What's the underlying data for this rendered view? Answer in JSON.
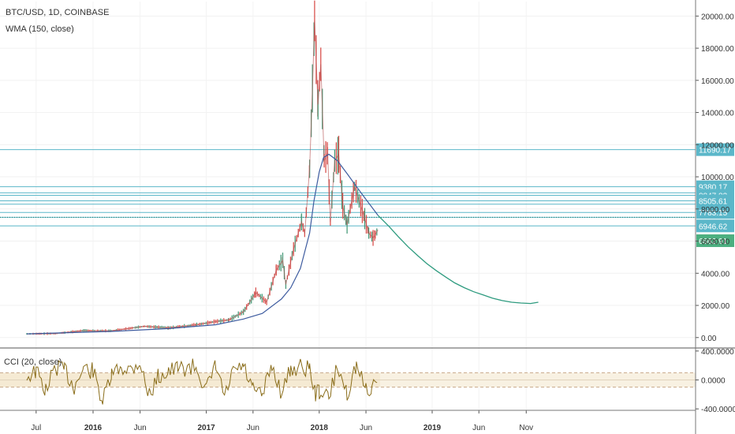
{
  "header": {
    "symbol": "BTC/USD, 1D, COINBASE",
    "indicator": "WMA (150, close)",
    "cci_label": "CCI (20, close)"
  },
  "chart_data": [
    {
      "type": "line",
      "yaxis": {
        "ticks": [
          "20000.00",
          "18000.00",
          "16000.00",
          "14000.00",
          "12000.00",
          "10000.00",
          "8000.00",
          "6000.00",
          "4000.00",
          "2000.00",
          "0.00"
        ],
        "ylim": [
          -600,
          20900
        ]
      },
      "xaxis": {
        "ticks": [
          "Jul",
          "2016",
          "Jun",
          "2017",
          "Jun",
          "2018",
          "Jun",
          "2019",
          "Jun",
          "Nov"
        ],
        "bold_ticks": [
          "2016",
          "2017",
          "2018",
          "2019"
        ]
      },
      "horizontal_levels": [
        {
          "value": 11690.17,
          "label": "11690.17",
          "boxed": true
        },
        {
          "value": 9380.17,
          "label": "9380.17",
          "boxed": true
        },
        {
          "value": 8847.83,
          "label": "8847.83",
          "boxed": true
        },
        {
          "value": 8505.61,
          "label": "8505.61",
          "boxed": true
        },
        {
          "value": 7783.15,
          "label": "7783.15",
          "boxed": true
        },
        {
          "value": 6946.62,
          "label": "6946.62",
          "boxed": true
        },
        {
          "value": 9000,
          "label": "",
          "boxed": false
        },
        {
          "value": 8300,
          "label": "",
          "boxed": false
        },
        {
          "value": 7480,
          "label": "",
          "boxed": false
        }
      ],
      "last_price": {
        "value": 6662.91,
        "label": "6662.91",
        "color": "#4caf80"
      },
      "price_line_dotted": 7480,
      "series": [
        {
          "id": "price",
          "x": [
            "2015-06-01",
            "2015-09-01",
            "2015-12-01",
            "2016-03-01",
            "2016-06-15",
            "2016-09-01",
            "2016-12-01",
            "2017-02-01",
            "2017-03-15",
            "2017-05-01",
            "2017-06-10",
            "2017-07-15",
            "2017-08-15",
            "2017-09-05",
            "2017-09-15",
            "2017-10-10",
            "2017-11-05",
            "2017-11-15",
            "2017-12-01",
            "2017-12-10",
            "2017-12-17",
            "2017-12-28",
            "2018-01-06",
            "2018-01-17",
            "2018-01-28",
            "2018-02-06",
            "2018-02-20",
            "2018-03-05",
            "2018-03-18",
            "2018-04-01",
            "2018-04-25",
            "2018-05-10",
            "2018-05-28",
            "2018-06-10",
            "2018-06-24",
            "2018-07-01",
            "2018-07-10"
          ],
          "y": [
            230,
            250,
            430,
            420,
            700,
            600,
            800,
            1000,
            1100,
            1600,
            2800,
            2200,
            4200,
            4800,
            3300,
            5500,
            7200,
            6500,
            10500,
            15500,
            19700,
            14500,
            17000,
            11000,
            11500,
            7200,
            11000,
            11400,
            8200,
            7000,
            9400,
            8500,
            7400,
            6500,
            6200,
            6400,
            6700
          ]
        },
        {
          "id": "wma_150",
          "x": [
            "2015-06-01",
            "2016-03-01",
            "2016-09-01",
            "2017-02-01",
            "2017-05-01",
            "2017-07-01",
            "2017-09-01",
            "2017-10-01",
            "2017-11-01",
            "2017-12-01",
            "2017-12-15",
            "2018-01-01",
            "2018-01-15",
            "2018-02-01",
            "2018-03-01",
            "2018-04-01",
            "2018-05-01",
            "2018-06-01",
            "2018-07-10"
          ],
          "y": [
            230,
            380,
            560,
            800,
            1150,
            1500,
            2400,
            3100,
            4300,
            6500,
            8500,
            10300,
            11200,
            11400,
            11000,
            10200,
            9400,
            8600,
            7600
          ]
        },
        {
          "id": "projection",
          "x": [
            "2018-07-10",
            "2018-08-15",
            "2018-09-15",
            "2018-10-15",
            "2018-11-15",
            "2018-12-15",
            "2019-01-15",
            "2019-02-15",
            "2019-03-15",
            "2019-04-15",
            "2019-05-15",
            "2019-06-15",
            "2019-07-15",
            "2019-08-15",
            "2019-09-15",
            "2019-10-15",
            "2019-11-15",
            "2019-12-10"
          ],
          "y": [
            7600,
            6900,
            6250,
            5650,
            5100,
            4600,
            4150,
            3750,
            3400,
            3100,
            2850,
            2650,
            2450,
            2300,
            2200,
            2150,
            2120,
            2200
          ]
        }
      ]
    },
    {
      "type": "line",
      "title": "CCI (20, close)",
      "yaxis": {
        "ticks": [
          "400.0000",
          "0.0000",
          "-400.0000"
        ],
        "ylim": [
          -420,
          420
        ]
      },
      "bands": {
        "upper": 100,
        "lower": -100
      },
      "series": [
        {
          "id": "cci",
          "x": [
            "2015-06-01",
            "2015-07-01",
            "2015-08-01",
            "2015-09-01",
            "2015-10-01",
            "2015-11-01",
            "2015-12-01",
            "2016-01-01",
            "2016-02-01",
            "2016-03-01",
            "2016-04-01",
            "2016-05-01",
            "2016-06-01",
            "2016-06-20",
            "2016-07-01",
            "2016-08-01",
            "2016-09-01",
            "2016-10-01",
            "2016-11-01",
            "2016-12-01",
            "2017-01-01",
            "2017-02-01",
            "2017-03-01",
            "2017-04-01",
            "2017-05-01",
            "2017-06-01",
            "2017-07-01",
            "2017-08-01",
            "2017-09-01",
            "2017-10-01",
            "2017-11-01",
            "2017-12-01",
            "2017-12-20",
            "2018-01-01",
            "2018-02-01",
            "2018-03-01",
            "2018-04-01",
            "2018-05-01",
            "2018-06-01",
            "2018-06-20",
            "2018-07-10"
          ],
          "y": [
            50,
            120,
            -150,
            180,
            140,
            -100,
            160,
            120,
            -300,
            60,
            180,
            150,
            250,
            -100,
            -200,
            60,
            120,
            150,
            170,
            180,
            -150,
            200,
            -250,
            140,
            180,
            -150,
            -220,
            200,
            -180,
            150,
            180,
            160,
            -200,
            -150,
            -250,
            180,
            -180,
            200,
            -150,
            -120,
            100
          ]
        }
      ]
    }
  ]
}
